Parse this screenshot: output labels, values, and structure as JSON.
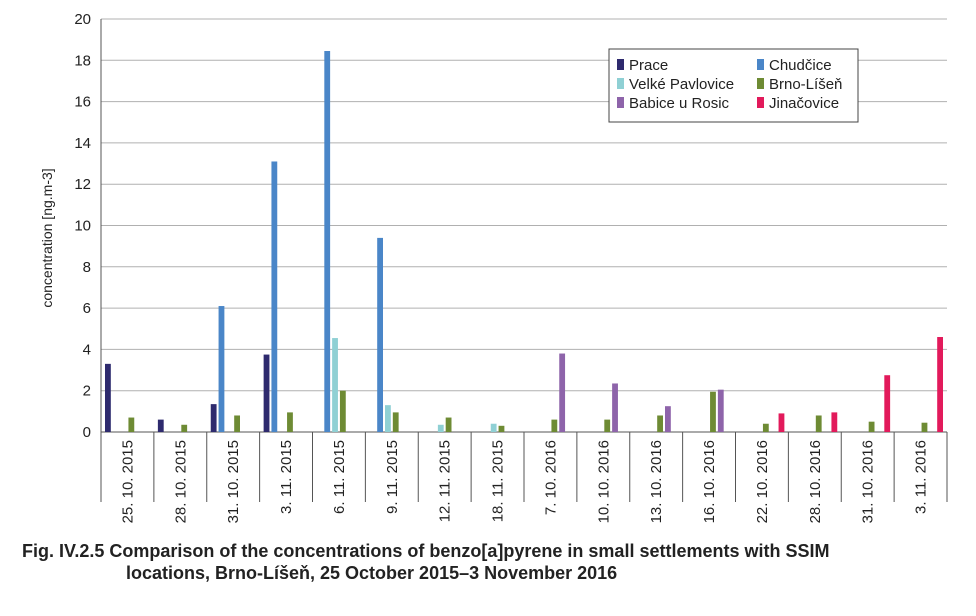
{
  "chart_data": {
    "type": "bar",
    "ylabel": "concentration [ng.m-3]",
    "ylim": [
      0,
      20
    ],
    "yticks": [
      0,
      2,
      4,
      6,
      8,
      10,
      12,
      14,
      16,
      18,
      20
    ],
    "grid": true,
    "legend_position": "top-right",
    "categories": [
      "25. 10. 2015",
      "28. 10. 2015",
      "31. 10. 2015",
      "3. 11. 2015",
      "6. 11. 2015",
      "9. 11. 2015",
      "12. 11. 2015",
      "18. 11. 2015",
      "7. 10. 2016",
      "10. 10. 2016",
      "13. 10. 2016",
      "16. 10. 2016",
      "22. 10. 2016",
      "28. 10. 2016",
      "31. 10. 2016",
      "3. 11. 2016"
    ],
    "series": [
      {
        "name": "Prace",
        "color": "#2e2a6e",
        "values": [
          3.3,
          0.6,
          1.35,
          3.75,
          null,
          null,
          null,
          null,
          null,
          null,
          null,
          null,
          null,
          null,
          null,
          null
        ]
      },
      {
        "name": "Chudčice",
        "color": "#4a86c8",
        "values": [
          null,
          null,
          6.1,
          13.1,
          18.45,
          9.4,
          null,
          null,
          null,
          null,
          null,
          null,
          null,
          null,
          null,
          null
        ]
      },
      {
        "name": "Velké Pavlovice",
        "color": "#8fd0d4",
        "values": [
          null,
          null,
          null,
          null,
          4.55,
          1.3,
          0.35,
          0.4,
          null,
          null,
          null,
          null,
          null,
          null,
          null,
          null
        ]
      },
      {
        "name": "Brno-Líšeň",
        "color": "#6e8b34",
        "values": [
          0.7,
          0.35,
          0.8,
          0.95,
          2.0,
          0.95,
          0.7,
          0.3,
          0.6,
          0.6,
          0.8,
          1.95,
          0.4,
          0.8,
          0.5,
          0.45
        ]
      },
      {
        "name": "Babice u Rosic",
        "color": "#8e64aa",
        "values": [
          null,
          null,
          null,
          null,
          null,
          null,
          null,
          null,
          3.8,
          2.35,
          1.25,
          2.05,
          null,
          null,
          null,
          null
        ]
      },
      {
        "name": "Jinačovice",
        "color": "#e21a5b",
        "values": [
          null,
          null,
          null,
          null,
          null,
          null,
          null,
          null,
          null,
          null,
          null,
          null,
          0.9,
          0.95,
          2.75,
          4.6
        ]
      }
    ]
  },
  "caption": {
    "line1": "Fig. IV.2.5  Comparison of the concentrations of benzo[a]pyrene in small settlements with SSIM",
    "line2": "locations, Brno-Líšeň, 25 October 2015–3 November 2016"
  }
}
